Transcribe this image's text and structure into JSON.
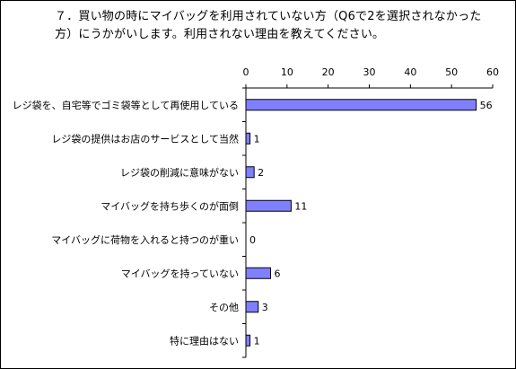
{
  "chart_data": {
    "type": "bar",
    "orientation": "horizontal",
    "title": "７．買い物の時にマイバッグを利用されていない方（Q6で2を選択されなかった方）にうかがいします。利用されない理由を教えてください。",
    "categories": [
      "レジ袋を、自宅等でゴミ袋等として再使用している",
      "レジ袋の提供はお店のサービスとして当然",
      "レジ袋の削減に意味がない",
      "マイバッグを持ち歩くのが面倒",
      "マイバッグに荷物を入れると持つのが重い",
      "マイバッグを持っていない",
      "その他",
      "特に理由はない"
    ],
    "values": [
      56,
      1,
      2,
      11,
      0,
      6,
      3,
      1
    ],
    "xlim": [
      0,
      60
    ],
    "xticks": [
      0,
      10,
      20,
      30,
      40,
      50,
      60
    ],
    "xlabel": "",
    "ylabel": "",
    "grid": false,
    "legend": "none",
    "bar_color": "#8080ff",
    "bar_edge_color": "#000000"
  }
}
